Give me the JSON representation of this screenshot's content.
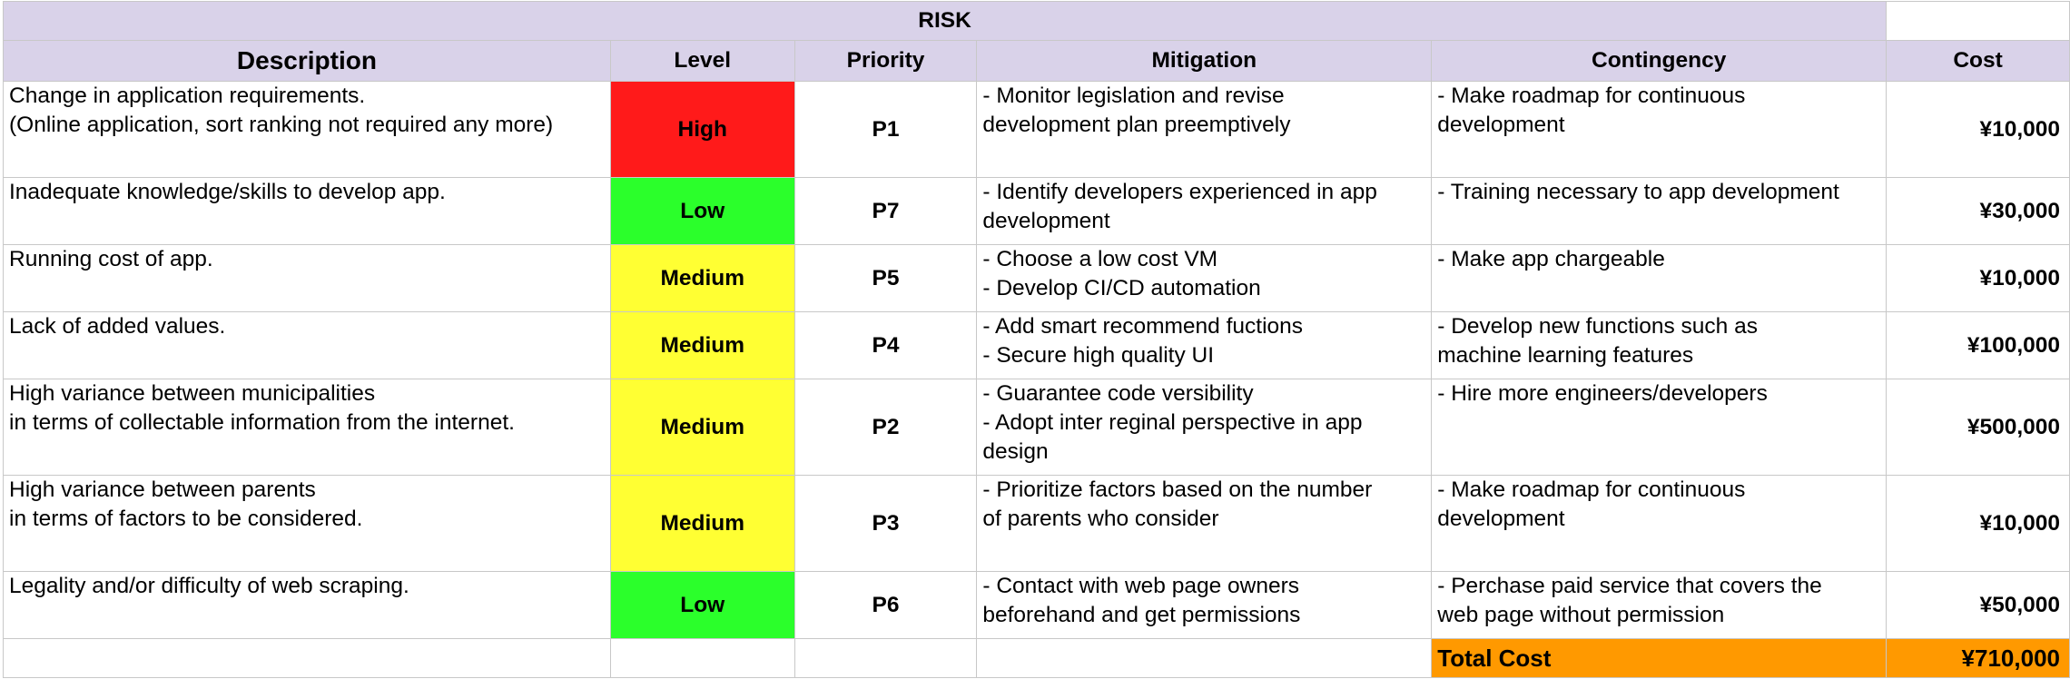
{
  "sheet": {
    "title": "RISK",
    "headers": {
      "description": "Description",
      "level": "Level",
      "priority": "Priority",
      "mitigation": "Mitigation",
      "contingency": "Contingency",
      "cost": "Cost"
    },
    "rows": [
      {
        "description": [
          "Change in application requirements.",
          "(Online application, sort ranking not required any more)"
        ],
        "level": "High",
        "priority": "P1",
        "mitigation": [
          "- Monitor legislation and revise",
          "development plan preemptively"
        ],
        "contingency": [
          "- Make roadmap for continuous",
          "development"
        ],
        "cost": "¥10,000"
      },
      {
        "description": [
          "Inadequate knowledge/skills to develop app."
        ],
        "level": "Low",
        "priority": "P7",
        "mitigation": [
          "- Identify developers experienced in app",
          "development"
        ],
        "contingency": [
          "- Training necessary to app development"
        ],
        "cost": "¥30,000"
      },
      {
        "description": [
          "Running cost of app."
        ],
        "level": "Medium",
        "priority": "P5",
        "mitigation": [
          "- Choose a low cost VM",
          "- Develop CI/CD automation"
        ],
        "contingency": [
          "- Make app chargeable"
        ],
        "cost": "¥10,000"
      },
      {
        "description": [
          "Lack of added values."
        ],
        "level": "Medium",
        "priority": "P4",
        "mitigation": [
          "- Add smart recommend fuctions",
          "- Secure high quality UI"
        ],
        "contingency": [
          "- Develop new functions such as",
          "machine learning features"
        ],
        "cost": "¥100,000"
      },
      {
        "description": [
          "High variance between municipalities",
          "in terms of collectable information from the internet."
        ],
        "level": "Medium",
        "priority": "P2",
        "mitigation": [
          "- Guarantee code versibility",
          "- Adopt inter reginal perspective in app",
          "design"
        ],
        "contingency": [
          "- Hire more engineers/developers"
        ],
        "cost": "¥500,000"
      },
      {
        "description": [
          "High variance between parents",
          "in terms of factors to be considered."
        ],
        "level": "Medium",
        "priority": "P3",
        "mitigation": [
          "- Prioritize factors based on the number",
          "of parents who consider"
        ],
        "contingency": [
          "- Make roadmap for continuous",
          "development"
        ],
        "cost": "¥10,000"
      },
      {
        "description": [
          "Legality and/or difficulty of web scraping."
        ],
        "level": "Low",
        "priority": "P6",
        "mitigation": [
          "- Contact with web page owners",
          "beforehand and get permissions"
        ],
        "contingency": [
          "- Perchase paid service that covers the",
          "web page without permission"
        ],
        "cost": "¥50,000"
      }
    ],
    "total": {
      "label": "Total Cost",
      "value": "¥710,000"
    },
    "colors": {
      "header": "#d9d2e9",
      "high": "#ff1a1a",
      "low": "#2bff2b",
      "medium": "#ffff33",
      "total": "#ff9900"
    }
  }
}
